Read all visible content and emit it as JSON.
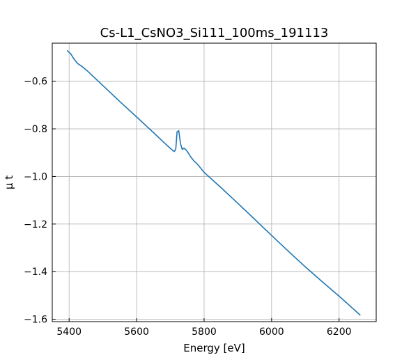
{
  "chart_data": {
    "type": "line",
    "title": "Cs-L1_CsNO3_Si111_100ms_191113",
    "xlabel": "Energy [eV]",
    "ylabel": "μ t",
    "xlim": [
      5350,
      6310
    ],
    "ylim": [
      -1.61,
      -0.44
    ],
    "xticks": [
      5400,
      5600,
      5800,
      6000,
      6200
    ],
    "yticks": [
      -1.6,
      -1.4,
      -1.2,
      -1.0,
      -0.8,
      -0.6
    ],
    "xtick_labels": [
      "5400",
      "5600",
      "5800",
      "6000",
      "6200"
    ],
    "ytick_labels": [
      "−1.6",
      "−1.4",
      "−1.2",
      "−1.0",
      "−0.8",
      "−0.6"
    ],
    "grid": true,
    "series": [
      {
        "color": "#1f77b4",
        "x": [
          5395,
          5405,
          5415,
          5425,
          5440,
          5455,
          5470,
          5500,
          5550,
          5600,
          5650,
          5680,
          5700,
          5708,
          5712,
          5716,
          5720,
          5725,
          5730,
          5735,
          5740,
          5745,
          5750,
          5760,
          5770,
          5780,
          5800,
          5850,
          5900,
          5950,
          6000,
          6050,
          6100,
          6150,
          6200,
          6262
        ],
        "y": [
          -0.472,
          -0.485,
          -0.508,
          -0.525,
          -0.54,
          -0.558,
          -0.578,
          -0.618,
          -0.685,
          -0.75,
          -0.816,
          -0.856,
          -0.882,
          -0.892,
          -0.895,
          -0.885,
          -0.812,
          -0.808,
          -0.862,
          -0.886,
          -0.882,
          -0.886,
          -0.895,
          -0.917,
          -0.935,
          -0.948,
          -0.983,
          -1.047,
          -1.113,
          -1.18,
          -1.248,
          -1.315,
          -1.38,
          -1.442,
          -1.503,
          -1.582
        ]
      }
    ]
  }
}
